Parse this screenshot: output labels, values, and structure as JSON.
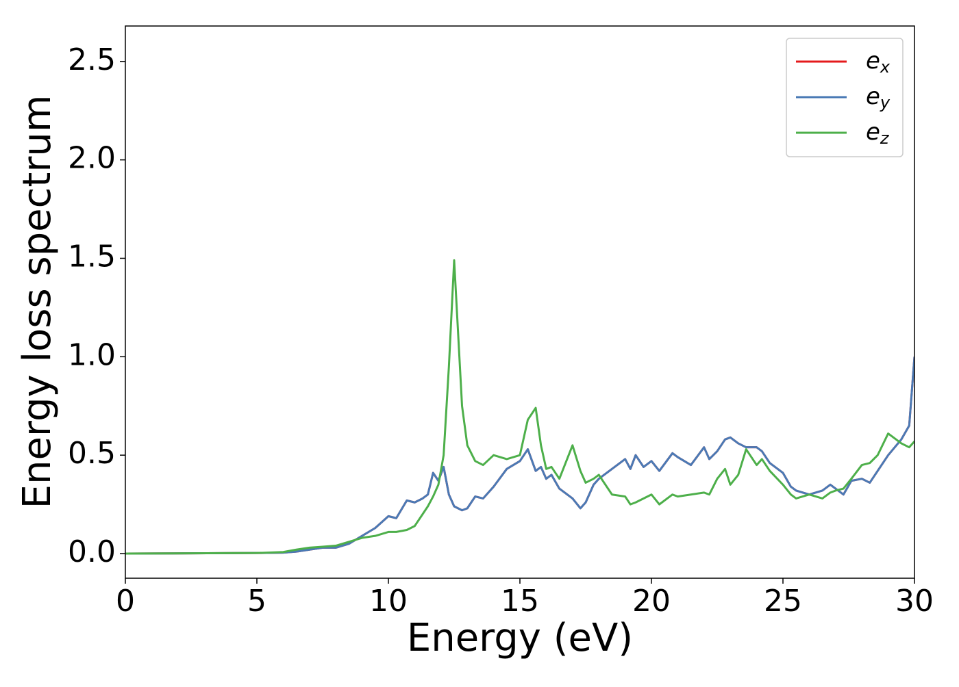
{
  "chart_data": {
    "type": "line",
    "xlabel": "Energy (eV)",
    "ylabel": "Energy loss spectrum",
    "x": [
      0,
      5,
      6,
      6.5,
      7,
      7.5,
      8,
      8.5,
      9,
      9.5,
      10,
      10.3,
      10.7,
      11,
      11.3,
      11.5,
      11.7,
      11.9,
      12.1,
      12.3,
      12.5,
      12.8,
      13,
      13.3,
      13.6,
      14,
      14.5,
      15,
      15.3,
      15.6,
      15.8,
      16,
      16.2,
      16.5,
      17,
      17.3,
      17.5,
      17.8,
      18,
      18.5,
      19,
      19.2,
      19.4,
      19.7,
      20,
      20.3,
      20.8,
      21,
      21.5,
      22,
      22.2,
      22.5,
      22.8,
      23,
      23.3,
      23.6,
      24,
      24.2,
      24.5,
      25,
      25.3,
      25.5,
      26,
      26.5,
      26.8,
      27,
      27.3,
      27.6,
      28,
      28.3,
      28.6,
      29,
      29.5,
      29.8,
      30
    ],
    "series": [
      {
        "name": "e_x",
        "color": "#e41a1c",
        "values": [
          0,
          0.003,
          0.005,
          0.01,
          0.02,
          0.03,
          0.03,
          0.05,
          0.09,
          0.13,
          0.19,
          0.18,
          0.27,
          0.26,
          0.28,
          0.3,
          0.41,
          0.37,
          0.44,
          0.3,
          0.24,
          0.22,
          0.23,
          0.29,
          0.28,
          0.34,
          0.43,
          0.47,
          0.53,
          0.42,
          0.44,
          0.38,
          0.4,
          0.33,
          0.28,
          0.23,
          0.26,
          0.35,
          0.38,
          0.43,
          0.48,
          0.43,
          0.5,
          0.44,
          0.47,
          0.42,
          0.51,
          0.49,
          0.45,
          0.54,
          0.48,
          0.52,
          0.58,
          0.59,
          0.56,
          0.54,
          0.54,
          0.52,
          0.46,
          0.41,
          0.34,
          0.32,
          0.3,
          0.32,
          0.35,
          0.33,
          0.3,
          0.37,
          0.38,
          0.36,
          0.42,
          0.5,
          0.58,
          0.65,
          1.0
        ]
      },
      {
        "name": "e_y",
        "color": "#4a7ab5",
        "values": [
          0,
          0.003,
          0.005,
          0.01,
          0.02,
          0.03,
          0.03,
          0.05,
          0.09,
          0.13,
          0.19,
          0.18,
          0.27,
          0.26,
          0.28,
          0.3,
          0.41,
          0.37,
          0.44,
          0.3,
          0.24,
          0.22,
          0.23,
          0.29,
          0.28,
          0.34,
          0.43,
          0.47,
          0.53,
          0.42,
          0.44,
          0.38,
          0.4,
          0.33,
          0.28,
          0.23,
          0.26,
          0.35,
          0.38,
          0.43,
          0.48,
          0.43,
          0.5,
          0.44,
          0.47,
          0.42,
          0.51,
          0.49,
          0.45,
          0.54,
          0.48,
          0.52,
          0.58,
          0.59,
          0.56,
          0.54,
          0.54,
          0.52,
          0.46,
          0.41,
          0.34,
          0.32,
          0.3,
          0.32,
          0.35,
          0.33,
          0.3,
          0.37,
          0.38,
          0.36,
          0.42,
          0.5,
          0.58,
          0.65,
          1.0
        ]
      },
      {
        "name": "e_z",
        "color": "#4daf4a",
        "values": [
          0,
          0.003,
          0.008,
          0.02,
          0.03,
          0.035,
          0.04,
          0.06,
          0.08,
          0.09,
          0.11,
          0.11,
          0.12,
          0.14,
          0.2,
          0.24,
          0.29,
          0.35,
          0.5,
          0.95,
          1.49,
          0.75,
          0.55,
          0.47,
          0.45,
          0.5,
          0.48,
          0.5,
          0.68,
          0.74,
          0.55,
          0.43,
          0.44,
          0.38,
          0.55,
          0.42,
          0.36,
          0.38,
          0.4,
          0.3,
          0.29,
          0.25,
          0.26,
          0.28,
          0.3,
          0.25,
          0.3,
          0.29,
          0.3,
          0.31,
          0.3,
          0.38,
          0.43,
          0.35,
          0.4,
          0.53,
          0.45,
          0.48,
          0.42,
          0.35,
          0.3,
          0.28,
          0.3,
          0.28,
          0.31,
          0.32,
          0.33,
          0.38,
          0.45,
          0.46,
          0.5,
          0.61,
          0.56,
          0.54,
          0.57
        ]
      }
    ],
    "xlim": [
      0,
      30
    ],
    "ylim": [
      -0.125,
      2.68
    ],
    "xticks": [
      0,
      5,
      10,
      15,
      20,
      25,
      30
    ],
    "yticks": [
      {
        "value": 0,
        "label": "0.0"
      },
      0.5,
      {
        "value": 1,
        "label": "1.0"
      },
      1.5,
      {
        "value": 2,
        "label": "2.0"
      },
      2.5
    ],
    "legend": "upper right"
  }
}
